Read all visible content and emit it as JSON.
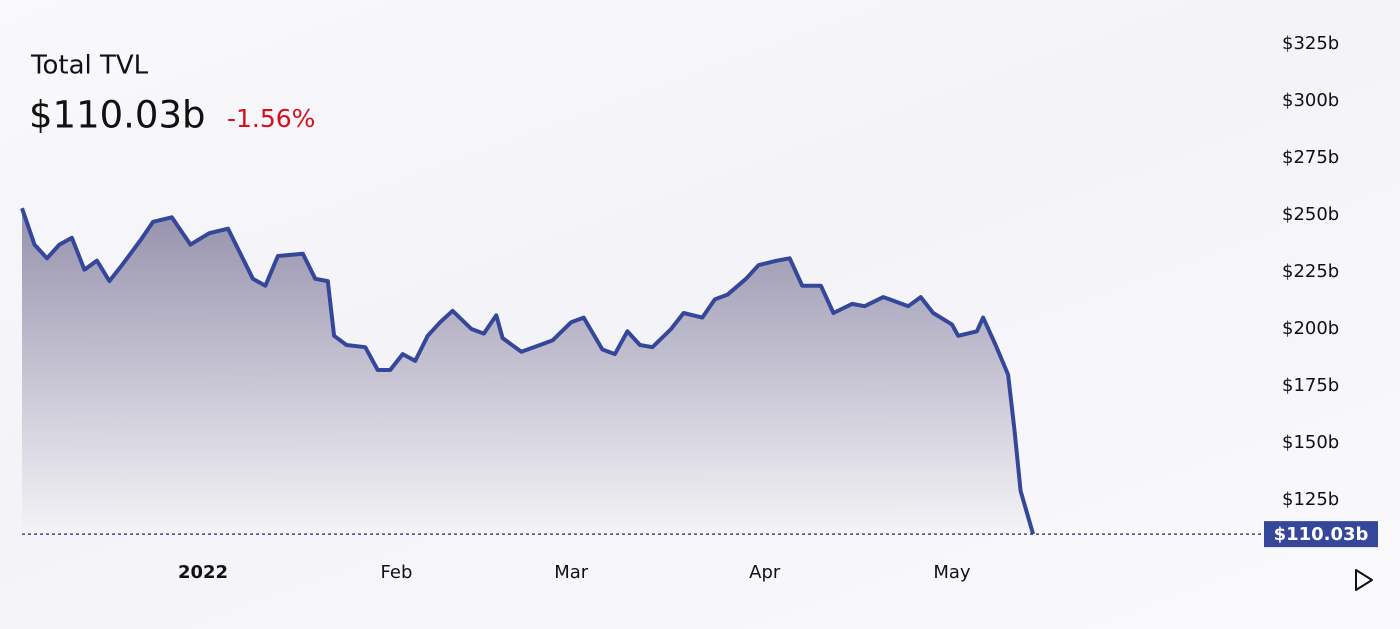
{
  "chart_data": {
    "type": "area",
    "title": "Total TVL",
    "headline_value": "$110.03b",
    "change": "-1.56%",
    "last_value_label": "$110.03b",
    "color": "#35479a",
    "change_color": "#d3101e",
    "xlim": [
      0,
      199
    ],
    "xticks": [
      {
        "value": 29,
        "label": "2022"
      },
      {
        "value": 60,
        "label": "Feb"
      },
      {
        "value": 88,
        "label": "Mar"
      },
      {
        "value": 119,
        "label": "Apr"
      },
      {
        "value": 149,
        "label": "May"
      }
    ],
    "ylim": [
      110,
      335
    ],
    "yticks": [
      {
        "value": 125,
        "label": "$125b"
      },
      {
        "value": 150,
        "label": "$150b"
      },
      {
        "value": 175,
        "label": "$175b"
      },
      {
        "value": 200,
        "label": "$200b"
      },
      {
        "value": 225,
        "label": "$225b"
      },
      {
        "value": 250,
        "label": "$250b"
      },
      {
        "value": 275,
        "label": "$275b"
      },
      {
        "value": 300,
        "label": "$300b"
      },
      {
        "value": 325,
        "label": "$325b"
      }
    ],
    "x": [
      0,
      2,
      4,
      6,
      8,
      10,
      12,
      14,
      16,
      19,
      21,
      24,
      27,
      30,
      33,
      37,
      39,
      41,
      45,
      47,
      49,
      50,
      52,
      55,
      57,
      59,
      61,
      63,
      65,
      67,
      69,
      72,
      74,
      76,
      77,
      80,
      83,
      85,
      88,
      90,
      93,
      95,
      97,
      99,
      101,
      104,
      106,
      109,
      111,
      113,
      116,
      118,
      121,
      123,
      125,
      128,
      130,
      133,
      135,
      138,
      140,
      142,
      144,
      146,
      149,
      150,
      153,
      154,
      156,
      158,
      159,
      160,
      162
    ],
    "values": [
      253,
      237,
      231,
      237,
      240,
      226,
      230,
      221,
      228,
      239,
      247,
      249,
      237,
      242,
      244,
      222,
      219,
      232,
      233,
      222,
      221,
      197,
      193,
      192,
      182,
      182,
      189,
      186,
      197,
      203,
      208,
      200,
      198,
      206,
      196,
      190,
      193,
      195,
      203,
      205,
      191,
      189,
      199,
      193,
      192,
      200,
      207,
      205,
      213,
      215,
      222,
      228,
      230,
      231,
      219,
      219,
      207,
      211,
      210,
      214,
      212,
      210,
      214,
      207,
      202,
      197,
      199,
      205,
      193,
      180,
      156,
      129,
      110.03
    ]
  }
}
